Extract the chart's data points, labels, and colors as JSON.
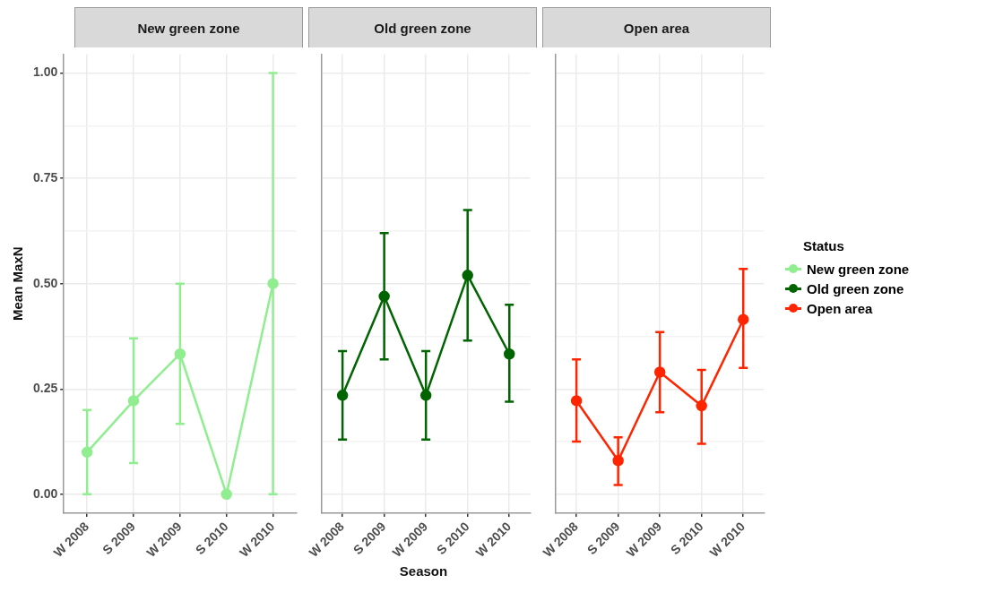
{
  "chart_data": [
    {
      "type": "line",
      "title": "New green zone",
      "ylabel": "Mean MaxN",
      "categories": [
        "W 2008",
        "S 2009",
        "W 2009",
        "S 2010",
        "W 2010"
      ],
      "ylim": [
        -0.045,
        1.045
      ],
      "yticks": [
        {
          "value": 0,
          "label": "0.00"
        },
        {
          "value": 0.125,
          "label": null
        },
        {
          "value": 0.25,
          "label": "0.25"
        },
        {
          "value": 0.375,
          "label": null
        },
        {
          "value": 0.5,
          "label": "0.50"
        },
        {
          "value": 0.625,
          "label": null
        },
        {
          "value": 0.75,
          "label": "0.75"
        },
        {
          "value": 0.875,
          "label": null
        },
        {
          "value": 1,
          "label": "1.00"
        }
      ],
      "grid": true,
      "marker": "circle",
      "legend": "right",
      "series": [
        {
          "name": "New green zone",
          "color": "#90ee90",
          "values": [
            0.1,
            0.222,
            0.333,
            0,
            0.5
          ],
          "errors": [
            [
              0,
              0.2
            ],
            [
              0.074,
              0.37
            ],
            [
              0.167,
              0.5
            ],
            null,
            [
              0,
              1
            ]
          ]
        }
      ]
    },
    {
      "type": "line",
      "title": "Old green zone",
      "xlabel": "Season",
      "categories": [
        "W 2008",
        "S 2009",
        "W 2009",
        "S 2010",
        "W 2010"
      ],
      "ylim": [
        -0.045,
        1.045
      ],
      "yticks": [
        0,
        {
          "value": 0.125,
          "label": null
        },
        0.25,
        {
          "value": 0.375,
          "label": null
        },
        0.5,
        {
          "value": 0.625,
          "label": null
        },
        0.75,
        {
          "value": 0.875,
          "label": null
        },
        1
      ],
      "grid": true,
      "marker": "circle",
      "legend": "right",
      "tick_labels": "x",
      "series": [
        {
          "name": "Old green zone",
          "color": "#006400",
          "values": [
            0.235,
            0.47,
            0.235,
            0.52,
            0.333
          ],
          "errors": [
            [
              0.13,
              0.34
            ],
            [
              0.32,
              0.62
            ],
            [
              0.13,
              0.34
            ],
            [
              0.365,
              0.675
            ],
            [
              0.22,
              0.45
            ]
          ]
        }
      ]
    },
    {
      "type": "line",
      "title": "Open area",
      "legend_title": "Status",
      "categories": [
        "W 2008",
        "S 2009",
        "W 2009",
        "S 2010",
        "W 2010"
      ],
      "ylim": [
        -0.045,
        1.045
      ],
      "yticks": [
        0,
        {
          "value": 0.125,
          "label": null
        },
        0.25,
        {
          "value": 0.375,
          "label": null
        },
        0.5,
        {
          "value": 0.625,
          "label": null
        },
        0.75,
        {
          "value": 0.875,
          "label": null
        },
        1
      ],
      "grid": true,
      "marker": "circle",
      "legend": "right",
      "tick_labels": "x",
      "series": [
        {
          "name": "Open area",
          "color": "#ff2500",
          "values": [
            0.222,
            0.08,
            0.29,
            0.21,
            0.415
          ],
          "errors": [
            [
              0.125,
              0.32
            ],
            [
              0.022,
              0.135
            ],
            [
              0.195,
              0.385
            ],
            [
              0.12,
              0.295
            ],
            [
              0.3,
              0.535
            ]
          ]
        }
      ]
    }
  ]
}
